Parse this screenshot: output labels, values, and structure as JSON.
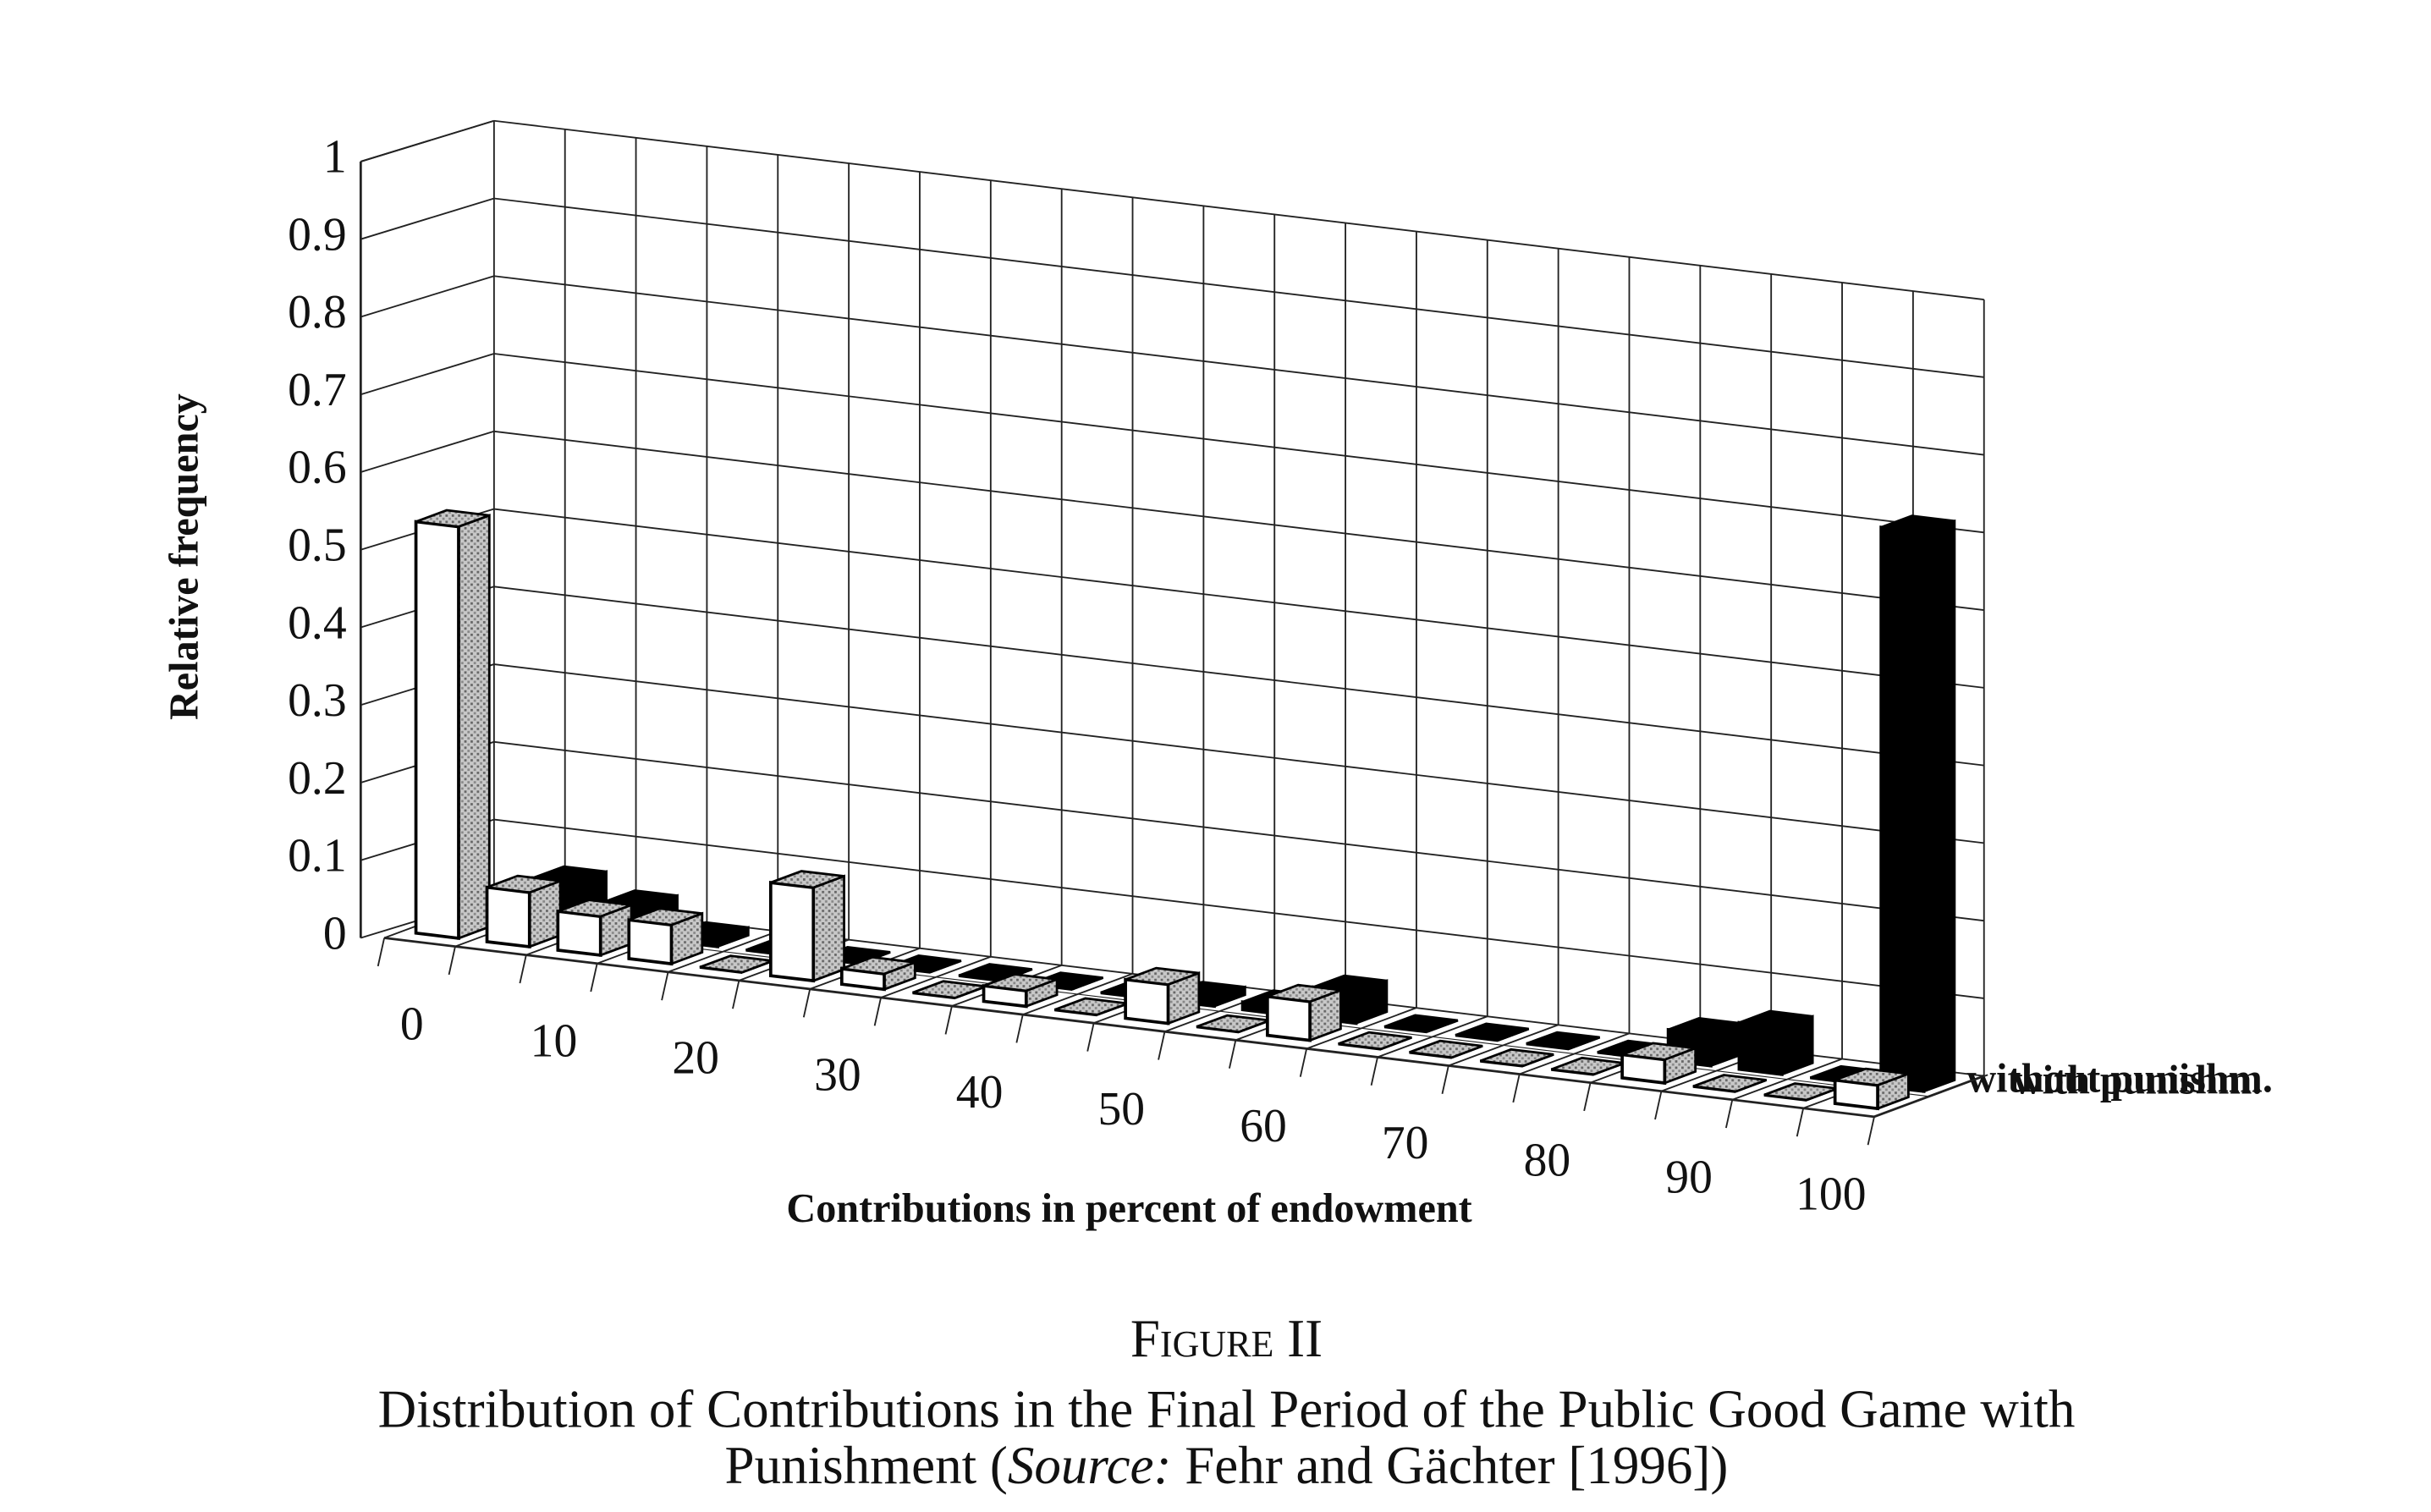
{
  "chart_data": {
    "type": "bar3d",
    "y_label": "Relative frequency",
    "x_label": "Contributions in percent of endowment",
    "categories": [
      0,
      null,
      10,
      null,
      20,
      null,
      30,
      null,
      40,
      null,
      50,
      null,
      60,
      null,
      70,
      null,
      80,
      null,
      90,
      null,
      100
    ],
    "series": [
      {
        "name": "without punishm.",
        "color": "#ffffff",
        "values": [
          0.53,
          0.07,
          0.05,
          0.05,
          0,
          0.12,
          0.02,
          0,
          0.02,
          0,
          0.05,
          0,
          0.05,
          0,
          0,
          0,
          0,
          0.03,
          0,
          0,
          0.03
        ]
      },
      {
        "name": "with punishm.",
        "color": "#000000",
        "values": [
          0,
          0.06,
          0.04,
          0.01,
          0,
          0,
          0,
          0,
          0,
          0,
          0.01,
          0.01,
          0.04,
          0,
          0,
          0,
          0,
          0.04,
          0.06,
          0,
          0.72
        ]
      }
    ],
    "ylim": [
      0,
      1
    ],
    "yticks": [
      0,
      0.1,
      0.2,
      0.3,
      0.4,
      0.5,
      0.6,
      0.7,
      0.8,
      0.9,
      1
    ],
    "grid": true,
    "figure_label": "Figure II",
    "caption": [
      "Distribution of Contributions in the Final Period of the Public Good Game with",
      "Punishment (",
      "Source:",
      " Fehr and Gächter [1996])"
    ]
  }
}
